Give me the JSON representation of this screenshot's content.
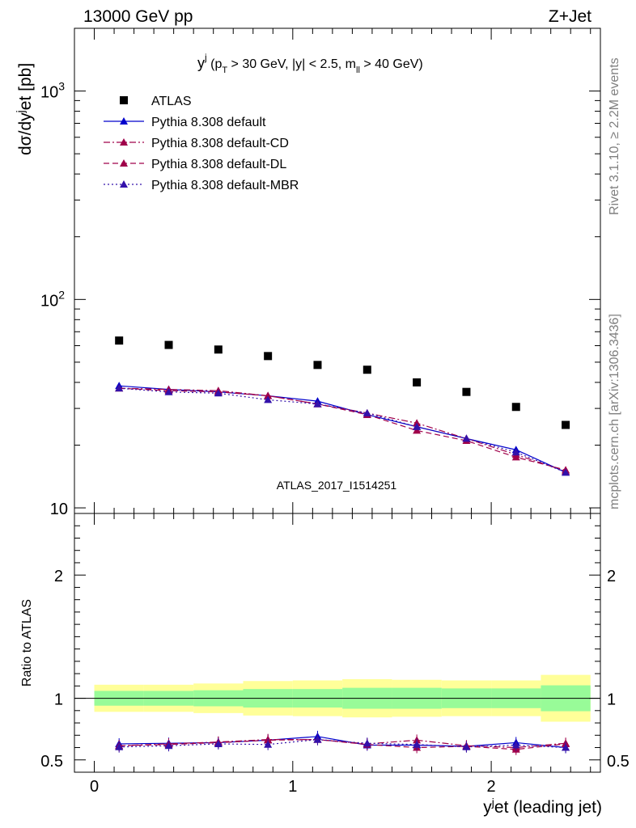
{
  "header": {
    "left": "13000 GeV pp",
    "right": "Z+Jet"
  },
  "side_labels": {
    "rivet": "Rivet 3.1.10, ≥ 2.2M events",
    "mcplots": "mcplots.cern.ch [arXiv:1306.3436]"
  },
  "watermark": "ATLAS_2017_I1514251",
  "chart_data": [
    {
      "type": "scatter",
      "panel": "main",
      "title": "y^j (p_T > 30 GeV, |y| < 2.5, m_ll > 40 GeV)",
      "title_parts": {
        "y": "y",
        "j": "j",
        "open": " (p",
        "T": "T",
        "mid": " > 30 GeV, |y| < 2.5, m",
        "ll": "ll",
        "close": " > 40 GeV)"
      },
      "ylabel": "dσ/dy^jet [pb]",
      "ylabel_parts": {
        "a": "dσ/dy",
        "b": "j",
        "c": "et [pb]"
      },
      "ylog": true,
      "ylim": [
        9.4,
        2000
      ],
      "yticks": [
        {
          "value": 10,
          "label": "10"
        },
        {
          "value": 100,
          "label": "10",
          "sup": "2"
        },
        {
          "value": 1000,
          "label": "10",
          "sup": "3"
        }
      ],
      "xlim": [
        -0.1,
        2.55
      ],
      "x": [
        0.125,
        0.375,
        0.625,
        0.875,
        1.125,
        1.375,
        1.625,
        1.875,
        2.125,
        2.375
      ],
      "series": [
        {
          "name": "ATLAS",
          "marker": "square",
          "color": "#000000",
          "values": [
            63.5,
            60.5,
            57.5,
            53.5,
            48.5,
            46,
            40,
            36,
            30.5,
            25
          ]
        },
        {
          "name": "Pythia 8.308 default",
          "marker": "triangle",
          "color": "#0000cc",
          "line": "solid",
          "values": [
            38.5,
            37,
            36,
            34.5,
            32.5,
            28,
            24.5,
            21.5,
            19,
            14.8
          ]
        },
        {
          "name": "Pythia 8.308 default-CD",
          "marker": "triangle",
          "color": "#a0004a",
          "line": "dashdot",
          "values": [
            37.5,
            37,
            36.5,
            34.5,
            31.5,
            28.5,
            25.5,
            21.5,
            18,
            15
          ]
        },
        {
          "name": "Pythia 8.308 default-DL",
          "marker": "triangle",
          "color": "#a0004a",
          "line": "dashed",
          "values": [
            37.5,
            36.5,
            36,
            34.5,
            31.5,
            28,
            23.5,
            21,
            17.5,
            15.2
          ]
        },
        {
          "name": "Pythia 8.308 default-MBR",
          "marker": "triangle",
          "color": "#3311aa",
          "line": "dotted",
          "values": [
            37.5,
            36,
            35.5,
            33,
            31.5,
            28.5,
            24.5,
            21.5,
            18.5,
            14.8
          ]
        }
      ]
    },
    {
      "type": "line",
      "panel": "ratio",
      "ylabel": "Ratio to ATLAS",
      "ylim": [
        0.4,
        2.5
      ],
      "yticks": [
        {
          "value": 0.5,
          "label": "0.5"
        },
        {
          "value": 1,
          "label": "1"
        },
        {
          "value": 2,
          "label": "2"
        }
      ],
      "xlabel": "y^jet (leading jet)",
      "xlabel_parts": {
        "a": "y",
        "b": "j",
        "c": "et (leading jet)"
      },
      "xlim": [
        -0.1,
        2.55
      ],
      "xticks": [
        {
          "value": 0,
          "label": "0"
        },
        {
          "value": 1,
          "label": "1"
        },
        {
          "value": 2,
          "label": "2"
        }
      ],
      "bands": {
        "bins": [
          [
            0,
            0.25
          ],
          [
            0.25,
            0.5
          ],
          [
            0.5,
            0.75
          ],
          [
            0.75,
            1.0
          ],
          [
            1.0,
            1.25
          ],
          [
            1.25,
            1.5
          ],
          [
            1.5,
            1.75
          ],
          [
            1.75,
            2.0
          ],
          [
            2.0,
            2.25
          ],
          [
            2.25,
            2.5
          ]
        ],
        "inner": [
          0.06,
          0.06,
          0.065,
          0.075,
          0.075,
          0.085,
          0.085,
          0.08,
          0.08,
          0.105
        ],
        "outer": [
          0.11,
          0.11,
          0.12,
          0.14,
          0.145,
          0.155,
          0.15,
          0.145,
          0.145,
          0.19
        ],
        "inner_color": "#98fb98",
        "outer_color": "#ffff99"
      },
      "series": [
        {
          "name": "Pythia 8.308 default",
          "color": "#0000cc",
          "line": "solid",
          "values": [
            0.63,
            0.635,
            0.64,
            0.66,
            0.69,
            0.62,
            0.62,
            0.61,
            0.64,
            0.6
          ]
        },
        {
          "name": "Pythia 8.308 default-CD",
          "color": "#a0004a",
          "line": "dashdot",
          "values": [
            0.615,
            0.63,
            0.645,
            0.665,
            0.665,
            0.63,
            0.66,
            0.615,
            0.6,
            0.635
          ]
        },
        {
          "name": "Pythia 8.308 default-DL",
          "color": "#a0004a",
          "line": "dashed",
          "values": [
            0.615,
            0.625,
            0.64,
            0.66,
            0.665,
            0.625,
            0.6,
            0.61,
            0.585,
            0.63
          ]
        },
        {
          "name": "Pythia 8.308 default-MBR",
          "color": "#3311aa",
          "line": "dotted",
          "values": [
            0.605,
            0.615,
            0.63,
            0.625,
            0.665,
            0.635,
            0.625,
            0.605,
            0.62,
            0.6
          ]
        }
      ]
    }
  ]
}
